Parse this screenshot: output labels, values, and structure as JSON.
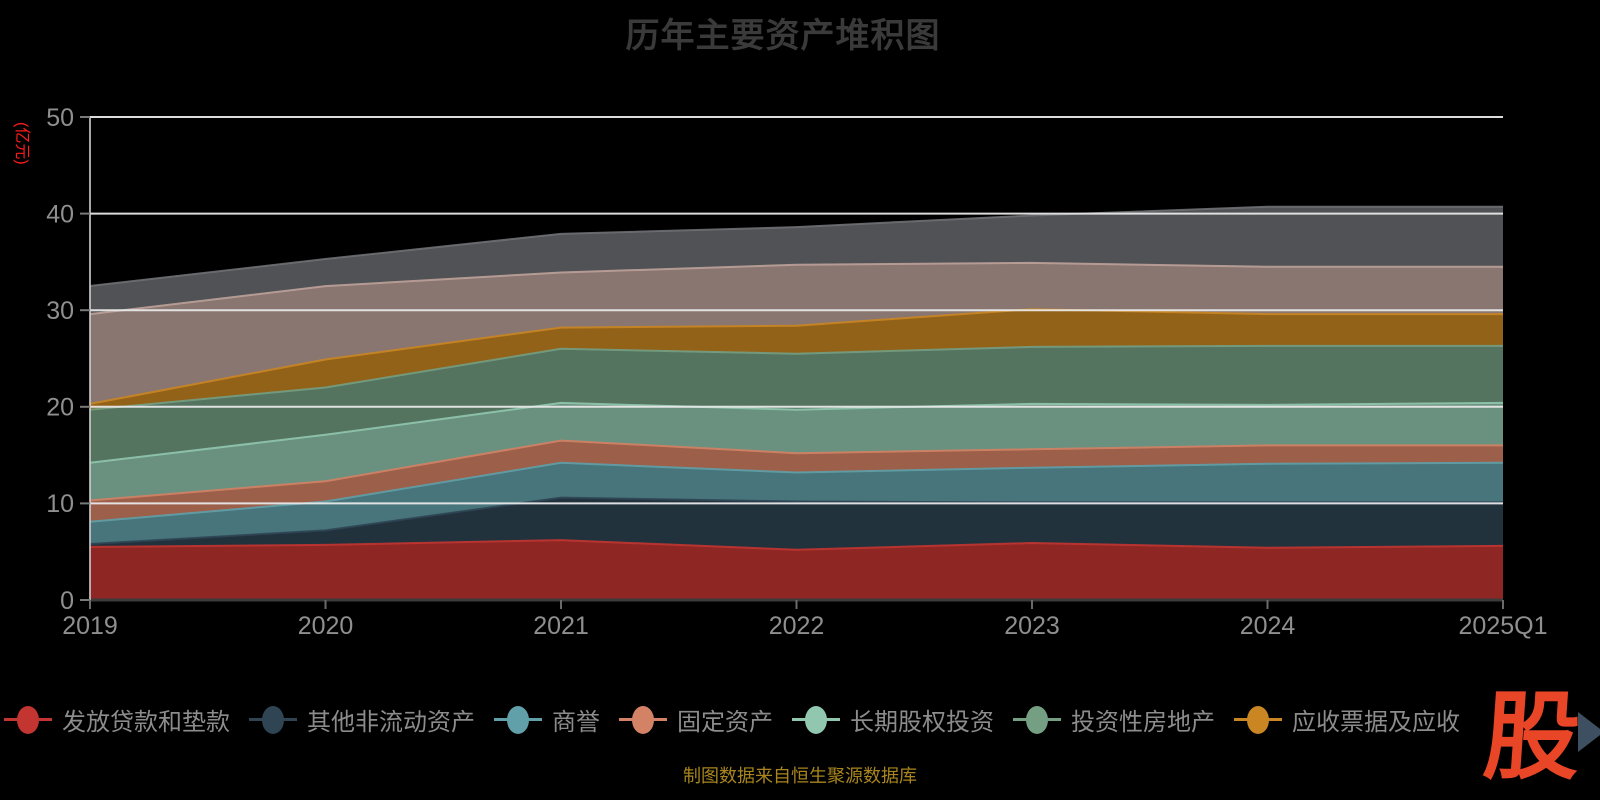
{
  "page": {
    "background": "#000000"
  },
  "chart_data": {
    "type": "area",
    "stacked": true,
    "title": "历年主要资产堆积图",
    "ylabel": "(亿元)",
    "xlabel": "",
    "ylim": [
      0,
      50
    ],
    "y_ticks": [
      0,
      10,
      20,
      30,
      40,
      50
    ],
    "grid": true,
    "legend_position": "bottom-left",
    "categories": [
      "2019",
      "2020",
      "2021",
      "2022",
      "2023",
      "2024",
      "2025Q1"
    ],
    "series": [
      {
        "name": "发放贷款和垫款",
        "color": "#c23531",
        "in_legend": true,
        "values": [
          5.5,
          5.7,
          6.2,
          5.2,
          5.9,
          5.4,
          5.6
        ]
      },
      {
        "name": "其他非流动资产",
        "color": "#2f4554",
        "in_legend": true,
        "values": [
          0.3,
          1.5,
          4.4,
          5.0,
          4.2,
          4.7,
          4.5
        ]
      },
      {
        "name": "商誉",
        "color": "#61a0a8",
        "in_legend": true,
        "values": [
          2.3,
          3.0,
          3.6,
          3.0,
          3.6,
          4.0,
          4.1
        ]
      },
      {
        "name": "固定资产",
        "color": "#d48265",
        "in_legend": true,
        "values": [
          2.2,
          2.1,
          2.3,
          2.0,
          1.9,
          1.9,
          1.8
        ]
      },
      {
        "name": "长期股权投资",
        "color": "#91c7ae",
        "in_legend": true,
        "values": [
          3.9,
          4.8,
          3.9,
          4.5,
          4.7,
          4.2,
          4.4
        ]
      },
      {
        "name": "投资性房地产",
        "color": "#749f83",
        "in_legend": true,
        "values": [
          5.5,
          4.9,
          5.6,
          5.8,
          5.9,
          6.1,
          5.9
        ]
      },
      {
        "name": "应收票据及应收",
        "color": "#ca8622",
        "in_legend": true,
        "values": [
          0.6,
          2.9,
          2.2,
          2.9,
          3.9,
          3.3,
          3.3
        ]
      },
      {
        "name": "",
        "color": "#bda29a",
        "in_legend": false,
        "values": [
          9.3,
          7.6,
          5.7,
          6.3,
          4.8,
          4.9,
          4.9
        ]
      },
      {
        "name": "",
        "color": "#6e7074",
        "in_legend": false,
        "values": [
          2.9,
          2.8,
          4.0,
          3.9,
          4.9,
          6.2,
          6.2
        ]
      }
    ]
  },
  "footer": {
    "source_note": "制图数据来自恒生聚源数据库"
  },
  "logo": {
    "text": "股",
    "color": "#e84627",
    "arrow_color": "#3e4f61"
  },
  "theme": {
    "title_color": "#3a3a3a",
    "axis_label_color": "#8f8f8f",
    "grid_line_color": "#e8e8e8",
    "x_axis_line_color": "#3b3b3b",
    "y_axis_line_color": "#cfcfcf",
    "legend_text_color": "#8c8c8c",
    "unit_label_color": "#ff1c1c",
    "source_note_color": "#a8861d"
  }
}
